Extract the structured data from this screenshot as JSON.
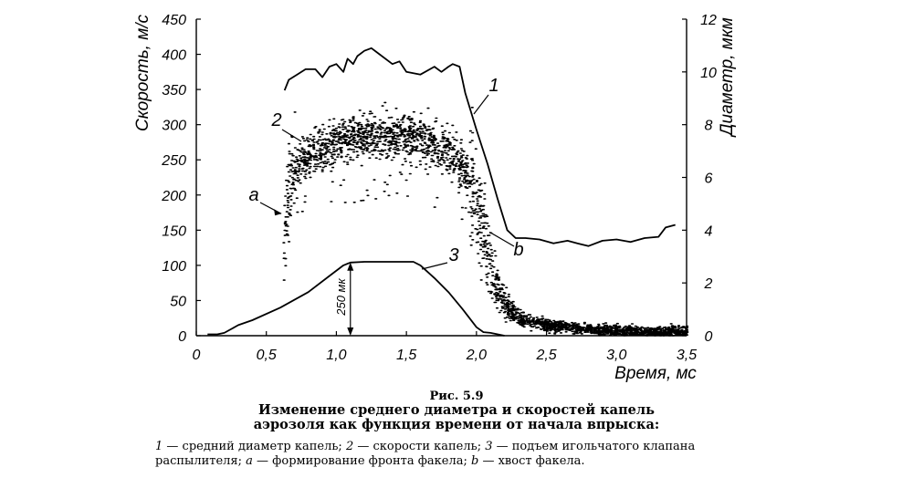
{
  "chart_data": {
    "type": "line",
    "title": "",
    "xlabel": "Время, мс",
    "ylabel": "Скорость, м/с",
    "y2label": "Диаметр, мкм",
    "xlim": [
      0,
      3.5
    ],
    "ylim": [
      0,
      450
    ],
    "y2lim": [
      0,
      12
    ],
    "grid": false,
    "x_ticks": [
      "0",
      "0,5",
      "1,0",
      "1,5",
      "2,0",
      "2,5",
      "3,0",
      "3,5"
    ],
    "x_tick_values": [
      0,
      0.5,
      1.0,
      1.5,
      2.0,
      2.5,
      3.0,
      3.5
    ],
    "y_ticks": [
      "0",
      "50",
      "100",
      "150",
      "200",
      "250",
      "300",
      "350",
      "400",
      "450"
    ],
    "y_tick_values": [
      0,
      50,
      100,
      150,
      200,
      250,
      300,
      350,
      400,
      450
    ],
    "y2_ticks": [
      "0",
      "2",
      "4",
      "6",
      "8",
      "10",
      "12"
    ],
    "y2_tick_values": [
      0,
      2,
      4,
      6,
      8,
      10,
      12
    ],
    "series": [
      {
        "name": "1",
        "description_key": "средний диаметр капель",
        "axis": "right",
        "x": [
          0.63,
          0.66,
          0.72,
          0.78,
          0.85,
          0.9,
          0.95,
          1.0,
          1.05,
          1.08,
          1.12,
          1.15,
          1.2,
          1.25,
          1.3,
          1.4,
          1.45,
          1.5,
          1.6,
          1.7,
          1.75,
          1.8,
          1.83,
          1.88,
          1.92,
          2.0,
          2.08,
          2.15,
          2.22,
          2.28,
          2.35,
          2.45,
          2.55,
          2.65,
          2.72,
          2.8,
          2.9,
          3.0,
          3.1,
          3.2,
          3.3,
          3.35,
          3.42
        ],
        "values": [
          9.3,
          9.7,
          9.9,
          10.1,
          10.1,
          9.8,
          10.2,
          10.3,
          10.0,
          10.5,
          10.3,
          10.6,
          10.8,
          10.9,
          10.7,
          10.3,
          10.4,
          10.0,
          9.9,
          10.2,
          10.0,
          10.2,
          10.3,
          10.2,
          9.2,
          7.8,
          6.5,
          5.2,
          4.0,
          3.7,
          3.7,
          3.65,
          3.5,
          3.6,
          3.5,
          3.4,
          3.6,
          3.65,
          3.55,
          3.7,
          3.75,
          4.1,
          4.2
        ],
        "label": "1"
      },
      {
        "name": "2",
        "description_key": "скорости капель",
        "axis": "left",
        "kind": "scatter",
        "envelope_x": [
          0.62,
          0.66,
          0.75,
          0.85,
          1.0,
          1.2,
          1.4,
          1.6,
          1.8,
          1.95,
          2.05,
          2.1,
          2.2,
          2.3,
          2.5,
          2.8,
          3.2,
          3.5
        ],
        "envelope_values": [
          150,
          220,
          250,
          262,
          275,
          282,
          285,
          280,
          262,
          225,
          150,
          90,
          45,
          25,
          15,
          9,
          6,
          5
        ],
        "label": "2"
      },
      {
        "name": "3",
        "description_key": "подъем игольчатого клапана распылителя",
        "axis": "left",
        "x": [
          0.08,
          0.15,
          0.2,
          0.3,
          0.4,
          0.6,
          0.8,
          0.95,
          1.05,
          1.1,
          1.2,
          1.4,
          1.55,
          1.6,
          1.7,
          1.8,
          1.9,
          2.0,
          2.05,
          2.1,
          2.2
        ],
        "values": [
          2,
          2,
          4,
          15,
          22,
          40,
          62,
          85,
          100,
          104,
          105,
          105,
          105,
          100,
          82,
          62,
          38,
          12,
          5,
          4,
          0
        ],
        "label": "3"
      }
    ],
    "annotations": [
      {
        "text": "a",
        "x": 0.62,
        "y": 176
      },
      {
        "text": "b",
        "x": 2.08,
        "y": 150
      },
      {
        "text": "250 мк",
        "x": 1.1,
        "y": 55
      }
    ]
  },
  "figure": {
    "number": "Рис. 5.9",
    "title": "Изменение среднего диаметра и скоростей капель аэрозоля как функция времени от начала впрыска:",
    "legend": [
      {
        "key": "1",
        "text": " — средний диаметр капель; "
      },
      {
        "key": "2",
        "text": " — скорости капель; "
      },
      {
        "key": "3",
        "text": " — подъем игольчатого клапана распылителя; "
      },
      {
        "key": "a",
        "text": " — формирование фронта факела; "
      },
      {
        "key": "b",
        "text": " — хвост факела."
      }
    ]
  }
}
